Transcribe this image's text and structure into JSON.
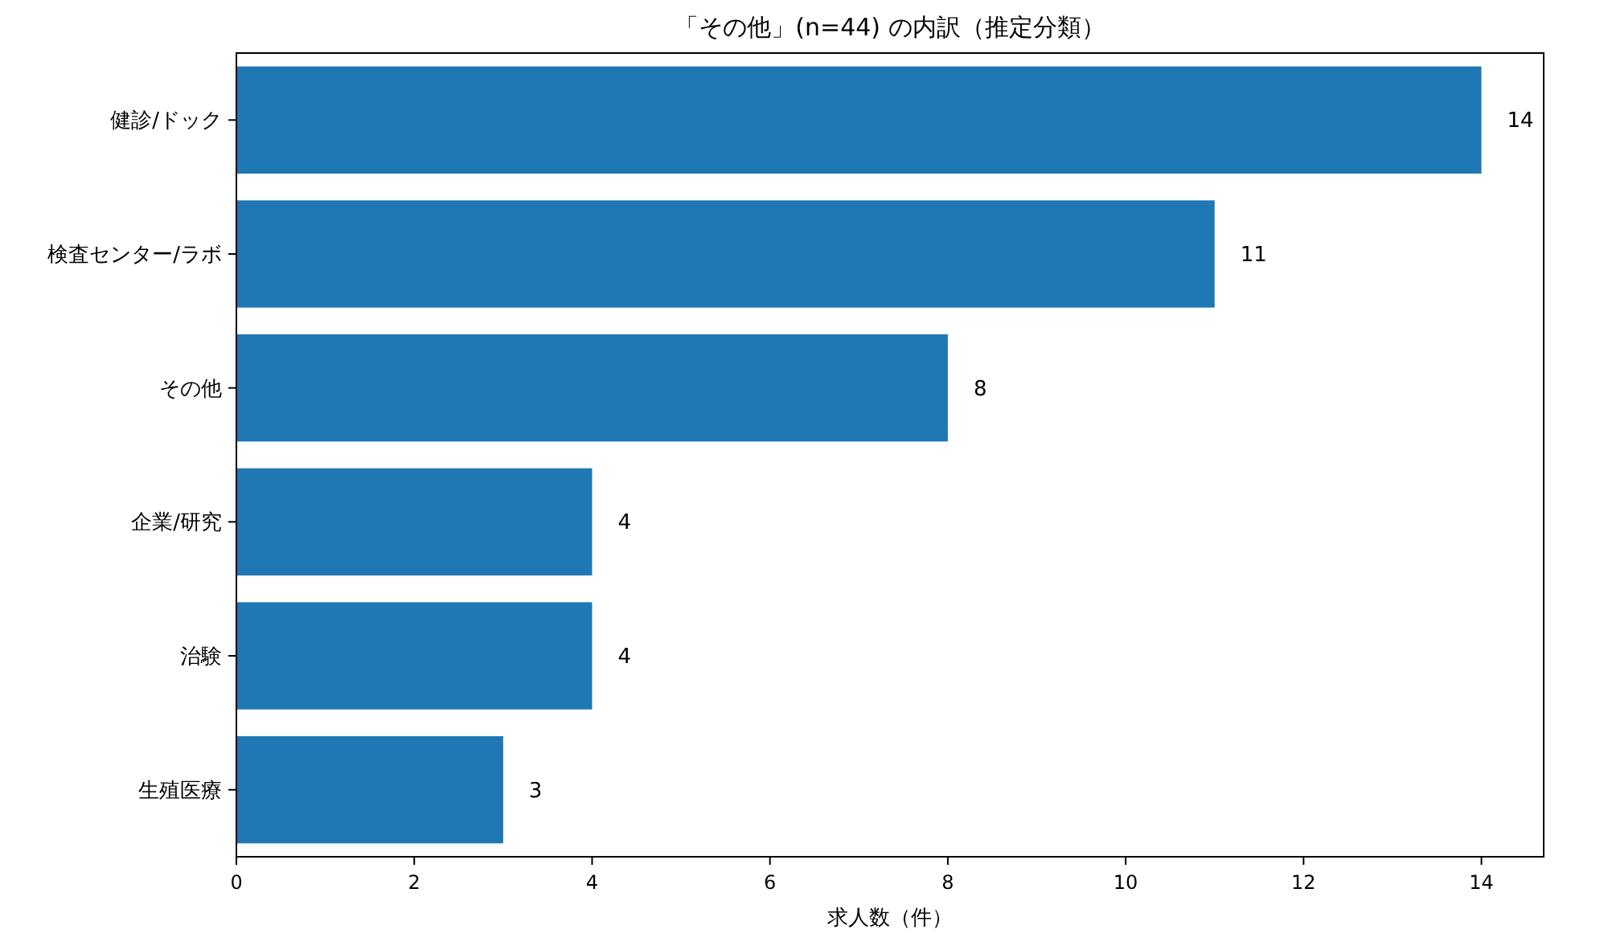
{
  "chart_data": {
    "type": "bar",
    "orientation": "horizontal",
    "title": "「その他」(n=44) の内訳（推定分類）",
    "xlabel": "求人数（件）",
    "categories": [
      "健診/ドック",
      "検査センター/ラボ",
      "その他",
      "企業/研究",
      "治験",
      "生殖医療"
    ],
    "values": [
      14,
      11,
      8,
      4,
      4,
      3
    ],
    "color": "#1f77b4",
    "xlim": [
      0,
      14.7
    ],
    "xticks": [
      0,
      2,
      4,
      6,
      8,
      10,
      12,
      14
    ],
    "data_labels": true,
    "grid": false
  }
}
